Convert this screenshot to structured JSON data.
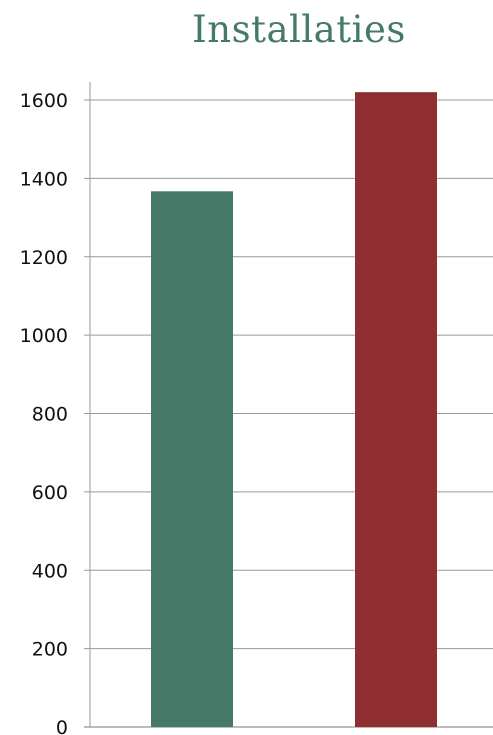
{
  "chart_data": {
    "type": "bar",
    "title": "Installaties",
    "categories": [
      "",
      ""
    ],
    "values": [
      1367,
      1620
    ],
    "colors": [
      "#457a68",
      "#8f2e31"
    ],
    "ylim": [
      0,
      1600
    ],
    "yticks": [
      "0",
      "200",
      "400",
      "600",
      "800",
      "1000",
      "1200",
      "1400",
      "1600"
    ],
    "ytick_values": [
      0,
      200,
      400,
      600,
      800,
      1000,
      1200,
      1400,
      1600
    ],
    "grid": true,
    "legend": "none"
  }
}
